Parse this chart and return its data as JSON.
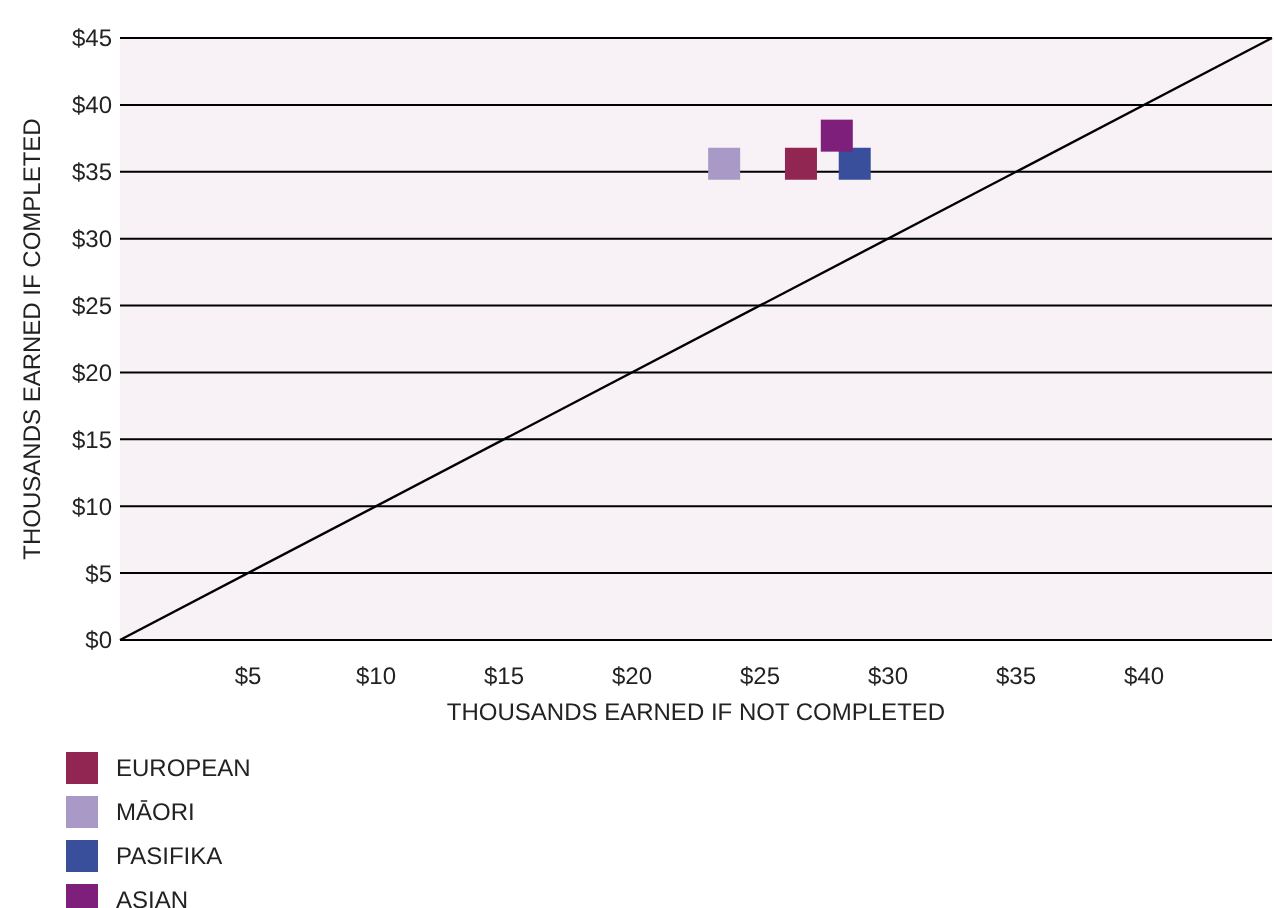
{
  "chart_data": {
    "type": "scatter",
    "xlabel": "THOUSANDS EARNED IF NOT COMPLETED",
    "ylabel": "THOUSANDS EARNED IF COMPLETED",
    "xlim": [
      0,
      45
    ],
    "ylim": [
      0,
      45
    ],
    "xticks": [
      {
        "value": 5,
        "label": "$5"
      },
      {
        "value": 10,
        "label": "$10"
      },
      {
        "value": 15,
        "label": "$15"
      },
      {
        "value": 20,
        "label": "$20"
      },
      {
        "value": 25,
        "label": "$25"
      },
      {
        "value": 30,
        "label": "$30"
      },
      {
        "value": 35,
        "label": "$35"
      },
      {
        "value": 40,
        "label": "$40"
      }
    ],
    "yticks": [
      {
        "value": 0,
        "label": "$0"
      },
      {
        "value": 5,
        "label": "$5"
      },
      {
        "value": 10,
        "label": "$10"
      },
      {
        "value": 15,
        "label": "$15"
      },
      {
        "value": 20,
        "label": "$20"
      },
      {
        "value": 25,
        "label": "$25"
      },
      {
        "value": 30,
        "label": "$30"
      },
      {
        "value": 35,
        "label": "$35"
      },
      {
        "value": 40,
        "label": "$40"
      },
      {
        "value": 45,
        "label": "$45"
      }
    ],
    "grid": "y",
    "legend": "bottom",
    "marker": "square",
    "series": [
      {
        "name": "EUROPEAN",
        "color": "#922653",
        "x": [
          26.6
        ],
        "values": [
          35.6
        ]
      },
      {
        "name": "MĀORI",
        "color": "#a899c6",
        "x": [
          23.6
        ],
        "values": [
          35.6
        ]
      },
      {
        "name": "PASIFIKA",
        "color": "#3a4f9c",
        "x": [
          28.7
        ],
        "values": [
          35.6
        ]
      },
      {
        "name": "ASIAN",
        "color": "#7f1f7c",
        "x": [
          28.0
        ],
        "values": [
          37.7
        ]
      },
      {
        "type": "line",
        "color": "#000000",
        "x": [
          0,
          45
        ],
        "values": [
          0,
          45
        ],
        "marker": "none"
      }
    ]
  }
}
